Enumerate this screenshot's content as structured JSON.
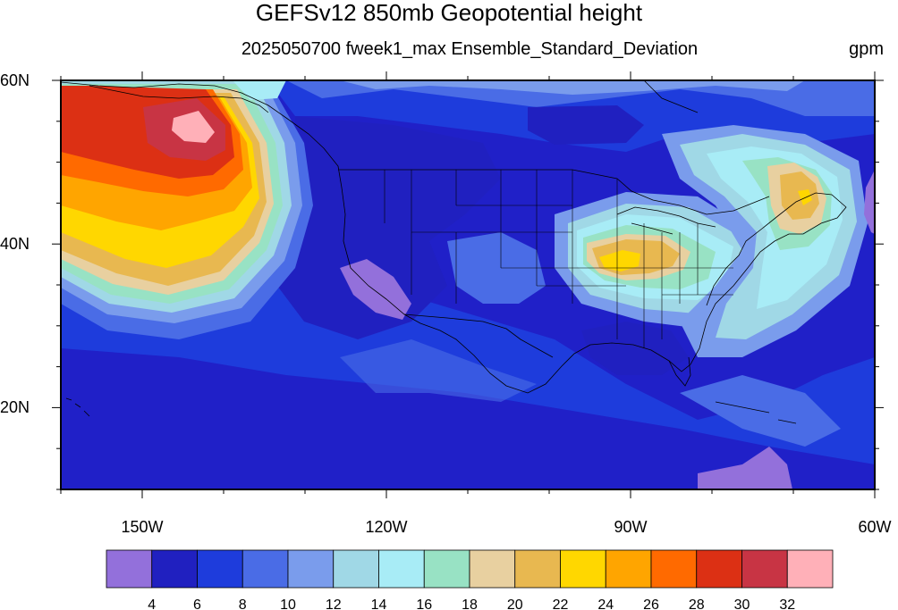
{
  "title": "GEFSv12 850mb Geopotential height",
  "subtitle": "2025050700 fweek1_max Ensemble_Standard_Deviation",
  "units": "gpm",
  "map": {
    "lon_range": [
      -160,
      -60
    ],
    "lat_range": [
      10,
      60
    ],
    "lat_ticks": [
      {
        "value": 60,
        "label": "60N"
      },
      {
        "value": 40,
        "label": "40N"
      },
      {
        "value": 20,
        "label": "20N"
      }
    ],
    "lon_ticks": [
      {
        "value": -150,
        "label": "150W"
      },
      {
        "value": -120,
        "label": "120W"
      },
      {
        "value": -90,
        "label": "90W"
      },
      {
        "value": -60,
        "label": "60W"
      }
    ],
    "background_level_color": "#2020c8"
  },
  "colorbar": {
    "colors": [
      "#9370db",
      "#2020c0",
      "#1e3cdc",
      "#4a6ce6",
      "#7a9cec",
      "#a0d8e6",
      "#a8ecf6",
      "#98e2c4",
      "#e8d0a0",
      "#e8b850",
      "#ffd700",
      "#ffa500",
      "#ff6a00",
      "#dc3014",
      "#c83444",
      "#ffb0b8"
    ],
    "labels": [
      "4",
      "6",
      "8",
      "10",
      "12",
      "14",
      "16",
      "18",
      "20",
      "22",
      "24",
      "26",
      "28",
      "30",
      "32"
    ]
  }
}
